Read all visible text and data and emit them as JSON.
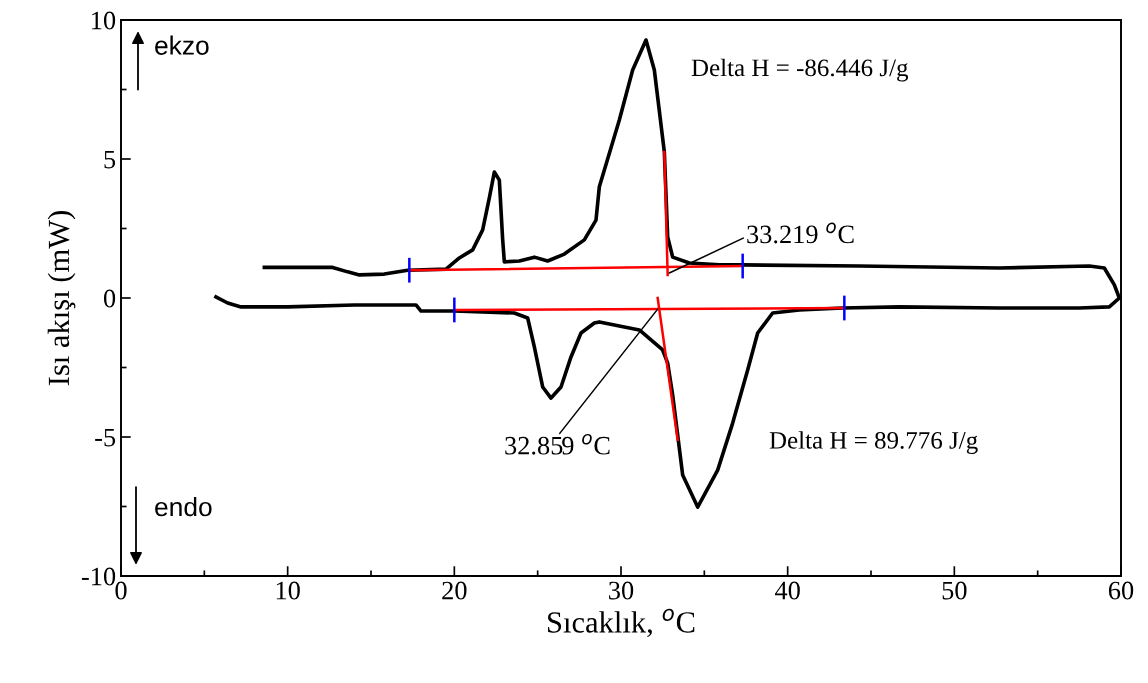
{
  "chart_data": {
    "type": "line",
    "xlabel": "Sıcaklık, $^{o}$C",
    "ylabel": "Isı akışı (mW)",
    "xlim": [
      0,
      60
    ],
    "xticks": [
      0,
      10,
      20,
      30,
      40,
      50,
      60
    ],
    "ylim": [
      -10,
      10
    ],
    "yticks": [
      {
        "value": -10,
        "label": "-10"
      },
      {
        "value": -5,
        "label": "-5"
      },
      0,
      5,
      10
    ],
    "grid": false,
    "legend": false,
    "line_style": "solid",
    "marker": "none",
    "series": [
      {
        "color": "#000000",
        "x": [
          8.6,
          12.7,
          13.6,
          14.3,
          15.8,
          17.2,
          19.5,
          20.3,
          21.1,
          21.7,
          22.1,
          22.4,
          22.7,
          22.9,
          23.0,
          23.9,
          24.8,
          25.6,
          26.6,
          27.8,
          28.5,
          28.7,
          29.9,
          30.7,
          31.5,
          32.0,
          32.6,
          32.8,
          33.1,
          34.1,
          35.9,
          37.3,
          44.3,
          52.7,
          58.1,
          59.0,
          59.6,
          59.9,
          59.3,
          57.5,
          52.7,
          46.7,
          43.3,
          40.7,
          39.1,
          38.2,
          37.6,
          36.7,
          35.8,
          34.6,
          33.7,
          33.1,
          32.8,
          32.5,
          31.1,
          28.7,
          28.4,
          27.6,
          27.0,
          26.4,
          25.8,
          25.3,
          24.8,
          24.4,
          23.6,
          20.0,
          18.0,
          17.7,
          14.0,
          10.0,
          7.2,
          6.4,
          5.7
        ],
        "values": [
          1.1,
          1.1,
          0.94,
          0.83,
          0.86,
          1.0,
          1.04,
          1.44,
          1.73,
          2.45,
          3.6,
          4.53,
          4.24,
          2.1,
          1.3,
          1.33,
          1.47,
          1.33,
          1.58,
          2.09,
          2.8,
          4.0,
          6.4,
          8.2,
          9.28,
          8.2,
          5.25,
          2.2,
          1.47,
          1.26,
          1.19,
          1.19,
          1.15,
          1.08,
          1.15,
          1.08,
          0.47,
          0,
          -0.32,
          -0.36,
          -0.36,
          -0.32,
          -0.36,
          -0.43,
          -0.54,
          -1.26,
          -2.59,
          -4.5,
          -6.19,
          -7.52,
          -6.37,
          -3.49,
          -2.34,
          -1.87,
          -1.15,
          -0.86,
          -0.9,
          -1.26,
          -2.12,
          -3.2,
          -3.6,
          -3.2,
          -1.76,
          -0.72,
          -0.54,
          -0.47,
          -0.47,
          -0.25,
          -0.25,
          -0.32,
          -0.32,
          -0.18,
          0.04
        ]
      },
      {
        "color": "#ff0000",
        "x": [
          17.3,
          37.3
        ],
        "values": [
          1.0,
          1.15
        ]
      },
      {
        "color": "#ff0000",
        "x": [
          32.6,
          32.8
        ],
        "values": [
          5.25,
          0.83
        ]
      },
      {
        "color": "#ff0000",
        "x": [
          20.0,
          43.4
        ],
        "values": [
          -0.43,
          -0.36
        ]
      },
      {
        "color": "#ff0000",
        "x": [
          32.2,
          33.4
        ],
        "values": [
          0.0,
          -5.1
        ]
      },
      {
        "color": "#0000ff",
        "x": [
          17.3,
          17.3
        ],
        "values": [
          0.6,
          1.4
        ]
      },
      {
        "color": "#0000ff",
        "x": [
          37.3,
          37.3
        ],
        "values": [
          0.75,
          1.55
        ]
      },
      {
        "color": "#0000ff",
        "x": [
          20.0,
          20.0
        ],
        "values": [
          -0.83,
          -0.03
        ]
      },
      {
        "color": "#0000ff",
        "x": [
          43.4,
          43.4
        ],
        "values": [
          -0.76,
          0.04
        ]
      }
    ],
    "annotations": [
      "ekzo",
      "endo",
      "Delta H = -86.446 J/g",
      "Delta H = 89.776 J/g",
      {
        "text": "33.219 $^{o}$C",
        "x": 32.9,
        "y": 0.9
      },
      {
        "text": "32.859 $^{o}$C",
        "x": 32.2,
        "y": -0.4
      }
    ]
  }
}
